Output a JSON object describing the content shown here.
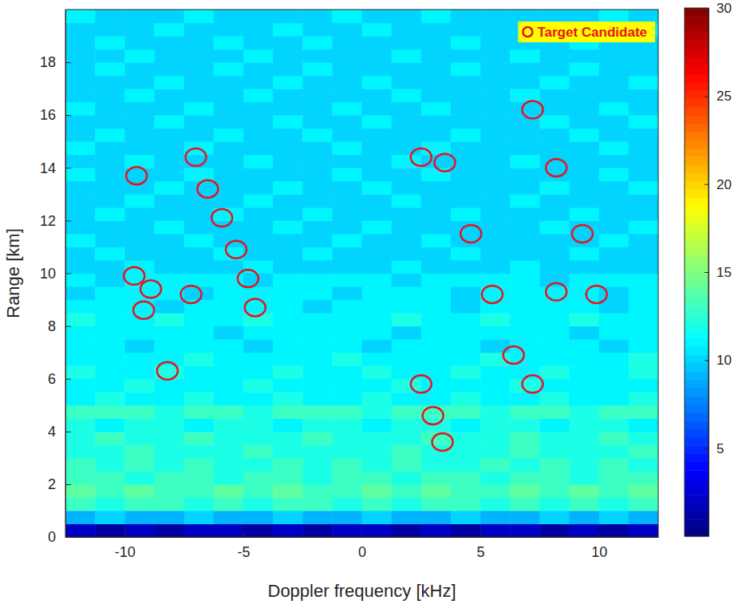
{
  "chart_data": {
    "type": "heatmap",
    "x_label": "Doppler frequency [kHz]",
    "y_label": "Range [km]",
    "xlim": [
      -12.5,
      12.5
    ],
    "xticks": [
      -10,
      -5,
      0,
      5,
      10
    ],
    "ylim": [
      0,
      20
    ],
    "yticks": [
      0,
      2,
      4,
      6,
      8,
      10,
      12,
      14,
      16,
      18
    ],
    "grid": false,
    "legend": "upper right",
    "x_bins": [
      -12.5,
      -11.25,
      -10,
      -8.75,
      -7.5,
      -6.25,
      -5,
      -3.75,
      -2.5,
      -1.25,
      0,
      1.25,
      2.5,
      3.75,
      5,
      6.25,
      7.5,
      8.75,
      10,
      11.25,
      12.5
    ],
    "y_bins": [
      0,
      0.5,
      1,
      1.5,
      2,
      2.5,
      3,
      3.5,
      4,
      4.5,
      5,
      5.5,
      6,
      6.5,
      7,
      7.5,
      8,
      8.5,
      9,
      9.5,
      10,
      10.5,
      11,
      11.5,
      12,
      12.5,
      13,
      13.5,
      14,
      14.5,
      15,
      15.5,
      16,
      16.5,
      17,
      17.5,
      18,
      18.5,
      19,
      19.5,
      20
    ],
    "cells": [
      [
        2,
        1,
        2,
        1,
        2,
        2,
        1,
        2,
        1,
        2,
        2,
        1,
        2,
        1,
        2,
        2,
        1,
        2,
        1,
        2
      ],
      [
        9,
        10,
        9,
        9,
        10,
        9,
        9,
        10,
        9,
        9,
        10,
        9,
        9,
        10,
        9,
        9,
        10,
        9,
        10,
        9
      ],
      [
        13,
        12,
        13,
        13,
        12,
        13,
        12,
        13,
        13,
        12,
        13,
        12,
        13,
        13,
        12,
        13,
        12,
        13,
        12,
        13
      ],
      [
        14,
        13,
        14,
        13,
        13,
        14,
        13,
        14,
        13,
        13,
        14,
        13,
        14,
        13,
        13,
        14,
        13,
        14,
        13,
        14
      ],
      [
        13,
        13,
        12,
        13,
        13,
        12,
        13,
        13,
        12,
        13,
        13,
        12,
        13,
        13,
        12,
        13,
        13,
        12,
        13,
        13
      ],
      [
        13,
        12,
        13,
        12,
        13,
        12,
        12,
        13,
        12,
        13,
        12,
        13,
        12,
        12,
        13,
        12,
        13,
        12,
        13,
        12
      ],
      [
        12,
        12,
        13,
        12,
        12,
        12,
        13,
        12,
        12,
        12,
        12,
        13,
        12,
        12,
        12,
        13,
        12,
        12,
        12,
        13
      ],
      [
        12,
        13,
        12,
        12,
        13,
        12,
        12,
        12,
        13,
        12,
        12,
        12,
        13,
        12,
        12,
        13,
        12,
        12,
        13,
        12
      ],
      [
        12,
        11,
        12,
        12,
        11,
        12,
        12,
        11,
        12,
        12,
        11,
        12,
        12,
        11,
        12,
        12,
        11,
        12,
        12,
        11
      ],
      [
        13,
        13,
        13,
        12,
        13,
        13,
        12,
        13,
        13,
        13,
        12,
        13,
        13,
        13,
        12,
        13,
        13,
        12,
        13,
        13
      ],
      [
        11,
        12,
        11,
        11,
        12,
        11,
        11,
        12,
        11,
        11,
        12,
        11,
        11,
        12,
        11,
        11,
        12,
        11,
        11,
        12
      ],
      [
        11,
        11,
        12,
        11,
        11,
        11,
        12,
        11,
        11,
        11,
        11,
        12,
        11,
        11,
        11,
        12,
        11,
        11,
        11,
        11
      ],
      [
        12,
        11,
        11,
        12,
        11,
        11,
        11,
        12,
        11,
        11,
        12,
        11,
        11,
        12,
        11,
        11,
        12,
        11,
        11,
        12
      ],
      [
        11,
        11,
        11,
        11,
        12,
        11,
        11,
        11,
        11,
        12,
        11,
        11,
        11,
        11,
        12,
        11,
        11,
        11,
        11,
        12
      ],
      [
        11,
        11,
        10,
        11,
        11,
        11,
        10,
        11,
        11,
        11,
        10,
        11,
        11,
        11,
        10,
        11,
        11,
        11,
        10,
        11
      ],
      [
        11,
        11,
        11,
        11,
        11,
        10,
        11,
        11,
        11,
        11,
        11,
        10,
        11,
        11,
        11,
        11,
        11,
        10,
        11,
        11
      ],
      [
        12,
        11,
        11,
        12,
        11,
        11,
        12,
        11,
        11,
        11,
        11,
        12,
        11,
        11,
        12,
        11,
        11,
        12,
        11,
        11
      ],
      [
        11,
        11,
        11,
        10,
        11,
        11,
        11,
        11,
        10,
        11,
        11,
        11,
        11,
        10,
        11,
        11,
        11,
        11,
        10,
        11
      ],
      [
        10,
        11,
        11,
        11,
        10,
        11,
        11,
        11,
        11,
        10,
        11,
        11,
        11,
        10,
        11,
        11,
        11,
        11,
        10,
        11
      ],
      [
        11,
        10,
        11,
        11,
        11,
        11,
        10,
        11,
        11,
        11,
        11,
        10,
        11,
        11,
        11,
        11,
        10,
        11,
        11,
        11
      ],
      [
        10,
        10,
        11,
        10,
        10,
        10,
        11,
        10,
        10,
        10,
        10,
        11,
        10,
        10,
        10,
        11,
        10,
        10,
        10,
        10
      ],
      [
        10,
        11,
        10,
        10,
        10,
        11,
        10,
        10,
        11,
        10,
        10,
        10,
        10,
        11,
        10,
        10,
        10,
        11,
        10,
        10
      ],
      [
        11,
        10,
        10,
        10,
        11,
        10,
        10,
        10,
        10,
        11,
        10,
        10,
        11,
        10,
        10,
        10,
        10,
        10,
        11,
        10
      ],
      [
        10,
        10,
        10,
        11,
        10,
        10,
        10,
        11,
        10,
        10,
        11,
        10,
        10,
        10,
        10,
        10,
        11,
        10,
        10,
        11
      ],
      [
        10,
        11,
        10,
        10,
        10,
        11,
        10,
        10,
        11,
        10,
        10,
        10,
        10,
        11,
        10,
        10,
        10,
        11,
        10,
        10
      ],
      [
        10,
        10,
        11,
        10,
        10,
        10,
        11,
        10,
        10,
        10,
        10,
        11,
        10,
        10,
        10,
        11,
        10,
        10,
        10,
        10
      ],
      [
        10,
        10,
        10,
        11,
        10,
        10,
        10,
        11,
        10,
        10,
        11,
        10,
        10,
        10,
        10,
        10,
        11,
        10,
        10,
        11
      ],
      [
        11,
        10,
        10,
        10,
        11,
        10,
        10,
        10,
        10,
        11,
        10,
        10,
        11,
        10,
        10,
        10,
        10,
        10,
        11,
        10
      ],
      [
        10,
        10,
        11,
        10,
        10,
        10,
        11,
        10,
        10,
        10,
        10,
        11,
        10,
        10,
        10,
        11,
        10,
        10,
        10,
        10
      ],
      [
        11,
        10,
        10,
        10,
        11,
        10,
        10,
        10,
        10,
        11,
        10,
        10,
        11,
        10,
        10,
        10,
        10,
        10,
        11,
        10
      ],
      [
        10,
        11,
        10,
        10,
        10,
        11,
        10,
        10,
        11,
        10,
        10,
        10,
        10,
        11,
        10,
        10,
        10,
        11,
        10,
        10
      ],
      [
        10,
        10,
        10,
        11,
        10,
        10,
        10,
        11,
        10,
        10,
        11,
        10,
        10,
        10,
        10,
        10,
        11,
        10,
        10,
        11
      ],
      [
        11,
        10,
        10,
        10,
        11,
        10,
        10,
        10,
        10,
        11,
        10,
        10,
        11,
        10,
        10,
        10,
        10,
        10,
        11,
        10
      ],
      [
        10,
        10,
        11,
        10,
        10,
        10,
        11,
        10,
        10,
        10,
        10,
        11,
        10,
        10,
        10,
        11,
        10,
        10,
        10,
        10
      ],
      [
        10,
        10,
        10,
        11,
        10,
        10,
        10,
        11,
        10,
        10,
        11,
        10,
        10,
        10,
        10,
        10,
        11,
        10,
        10,
        11
      ],
      [
        10,
        11,
        10,
        10,
        10,
        11,
        10,
        10,
        11,
        10,
        10,
        10,
        10,
        11,
        10,
        10,
        10,
        11,
        10,
        10
      ],
      [
        10,
        10,
        11,
        10,
        10,
        10,
        11,
        10,
        10,
        10,
        10,
        11,
        10,
        10,
        10,
        11,
        10,
        10,
        10,
        10
      ],
      [
        10,
        11,
        10,
        10,
        10,
        11,
        10,
        10,
        11,
        10,
        10,
        10,
        10,
        11,
        10,
        10,
        10,
        11,
        10,
        10
      ],
      [
        10,
        10,
        10,
        11,
        10,
        10,
        10,
        11,
        10,
        10,
        11,
        10,
        10,
        10,
        10,
        10,
        11,
        10,
        10,
        11
      ],
      [
        11,
        10,
        10,
        10,
        11,
        10,
        10,
        10,
        10,
        11,
        10,
        10,
        11,
        10,
        10,
        10,
        10,
        10,
        11,
        10
      ]
    ],
    "colorbar": {
      "range": [
        0,
        30
      ],
      "ticks": [
        5,
        10,
        15,
        20,
        25,
        30
      ]
    },
    "series": [
      {
        "name": "Target Candidate",
        "type": "scatter",
        "color": "#e8141c",
        "marker": "circle",
        "x": [
          -9.5,
          -7.0,
          -6.5,
          -5.9,
          -5.3,
          -4.8,
          -4.5,
          -9.6,
          -8.9,
          -9.2,
          -7.2,
          -8.2,
          2.5,
          3.5,
          7.2,
          8.2,
          4.6,
          9.3,
          5.5,
          8.2,
          9.9,
          6.4,
          7.2,
          2.5,
          3.0,
          3.4
        ],
        "y": [
          13.7,
          14.4,
          13.2,
          12.1,
          10.9,
          9.8,
          8.7,
          9.9,
          9.4,
          8.6,
          9.2,
          6.3,
          14.4,
          14.2,
          16.2,
          14.0,
          11.5,
          11.5,
          9.2,
          9.3,
          9.2,
          6.9,
          5.8,
          5.8,
          4.6,
          3.6
        ]
      }
    ]
  }
}
